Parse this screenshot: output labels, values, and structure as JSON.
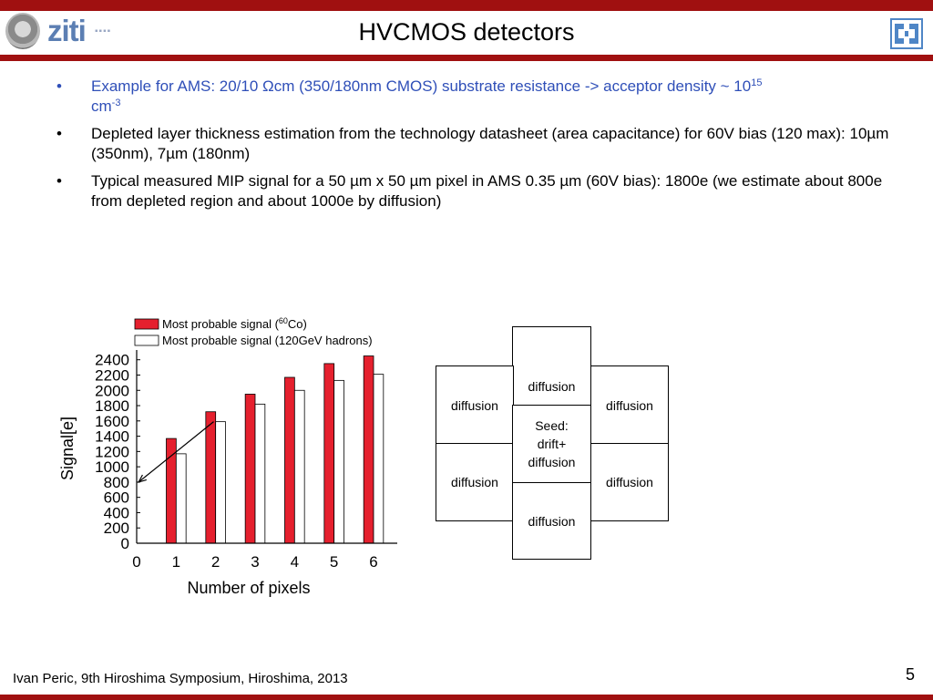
{
  "header": {
    "title": "HVCMOS detectors",
    "logo_text": "ziti",
    "colors": {
      "band": "#a01010",
      "accent_blue": "#2f4fb8"
    }
  },
  "bullets": [
    {
      "text": "Example for AMS: 20/10 Ωcm (350/180nm CMOS) substrate resistance -> acceptor density ~ 10",
      "sup": "15",
      "text2": "cm",
      "sup2": "-3"
    },
    {
      "text": "Depleted layer thickness estimation from the technology datasheet (area capacitance) for 60V bias (120 max): 10µm (350nm), 7µm (180nm)"
    },
    {
      "text": "Typical measured MIP signal for a 50 µm x 50 µm pixel in AMS 0.35 µm (60V bias): 1800e (we estimate about 800e from depleted region and about 1000e by diffusion)"
    }
  ],
  "chart_data": {
    "type": "bar",
    "x": [
      1,
      2,
      3,
      4,
      5,
      6
    ],
    "x_ticks": [
      "0",
      "1",
      "2",
      "3",
      "4",
      "5",
      "6"
    ],
    "series": [
      {
        "name": "Most probable signal (60Co)",
        "name_pre": "Most probable signal (",
        "name_sup": "60",
        "name_post": "Co)",
        "color": "#e5202e",
        "values": [
          1370,
          1720,
          1950,
          2170,
          2350,
          2450
        ]
      },
      {
        "name": "Most probable signal (120GeV hadrons)",
        "color": "#ffffff",
        "values": [
          1170,
          1590,
          1820,
          2000,
          2130,
          2210
        ]
      }
    ],
    "y_ticks": [
      "0",
      "200",
      "400",
      "600",
      "800",
      "1000",
      "1200",
      "1400",
      "1600",
      "1800",
      "2000",
      "2200",
      "2400"
    ],
    "xlabel": "Number of pixels",
    "ylabel": "Signal[e]",
    "ylim": [
      0,
      2480
    ],
    "xlim": [
      0,
      6.6
    ],
    "legend": "top-left",
    "annotation_arrow": {
      "from": [
        1.95,
        1590
      ],
      "to": [
        0.05,
        800
      ]
    }
  },
  "diagram": {
    "top": "diffusion",
    "upper_left": "diffusion",
    "upper_right": "diffusion",
    "center": "Seed: drift+ diffusion",
    "lower_left": "diffusion",
    "lower_right": "diffusion",
    "bottom": "diffusion"
  },
  "footer": {
    "text": "Ivan Peric, 9th Hiroshima Symposium, Hiroshima, 2013",
    "page": "5"
  }
}
